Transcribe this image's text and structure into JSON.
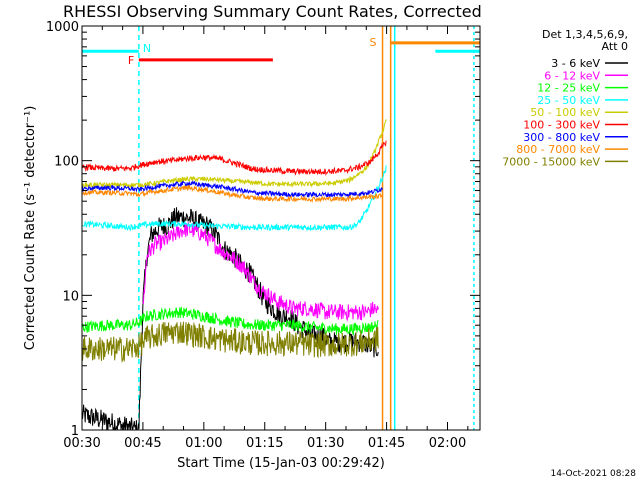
{
  "chart_data": {
    "type": "line",
    "title": "RHESSI Observing Summary Count Rates, Corrected",
    "xlabel": "Start Time (15-Jan-03 00:29:42)",
    "ylabel": "Corrected Count Rate (s⁻¹ detector⁻¹)",
    "yscale": "log",
    "ylim": [
      1,
      1000
    ],
    "xlim_minutes": [
      30,
      128
    ],
    "x_tick_minutes": [
      30,
      45,
      60,
      75,
      90,
      105,
      120
    ],
    "x_tick_labels": [
      "00:30",
      "00:45",
      "01:00",
      "01:15",
      "01:30",
      "01:45",
      "02:00"
    ],
    "y_ticks": [
      1,
      10,
      100,
      1000
    ],
    "y_tick_labels": [
      "1",
      "10",
      "100",
      "1000"
    ],
    "legend": {
      "placement": "right",
      "header": [
        "Det 1,3,4,5,6,9,",
        "Att 0"
      ]
    },
    "timestamp": "14-Oct-2021 08:28",
    "series": [
      {
        "name": "3 - 6 keV",
        "color": "#000000",
        "points": [
          [
            30,
            1.3
          ],
          [
            44,
            1.0
          ],
          [
            45,
            9
          ],
          [
            46,
            20
          ],
          [
            47,
            28
          ],
          [
            49,
            32
          ],
          [
            51,
            33
          ],
          [
            53,
            38
          ],
          [
            55,
            38
          ],
          [
            57,
            37
          ],
          [
            59,
            34
          ],
          [
            61,
            33
          ],
          [
            63,
            28
          ],
          [
            65,
            22
          ],
          [
            67,
            20
          ],
          [
            69,
            17
          ],
          [
            71,
            15
          ],
          [
            73,
            12
          ],
          [
            75,
            9
          ],
          [
            77,
            8
          ],
          [
            79,
            7
          ],
          [
            81,
            7
          ],
          [
            83,
            6
          ],
          [
            85,
            5.5
          ],
          [
            87,
            5
          ],
          [
            89,
            5
          ],
          [
            91,
            4.5
          ],
          [
            93,
            4.5
          ],
          [
            95,
            4.5
          ],
          [
            97,
            4.5
          ],
          [
            99,
            4.5
          ],
          [
            101,
            4.2
          ],
          [
            103,
            4
          ]
        ]
      },
      {
        "name": "6 - 12 keV",
        "color": "#ff00ff",
        "points": [
          [
            45,
            8
          ],
          [
            46,
            20
          ],
          [
            48,
            24
          ],
          [
            50,
            25
          ],
          [
            52,
            27
          ],
          [
            54,
            30
          ],
          [
            56,
            31
          ],
          [
            58,
            30
          ],
          [
            60,
            28
          ],
          [
            62,
            25
          ],
          [
            64,
            22
          ],
          [
            66,
            20
          ],
          [
            68,
            18
          ],
          [
            70,
            16
          ],
          [
            72,
            13
          ],
          [
            74,
            11
          ],
          [
            76,
            10
          ],
          [
            78,
            9
          ],
          [
            80,
            8.5
          ],
          [
            82,
            8
          ],
          [
            84,
            8
          ],
          [
            86,
            8
          ],
          [
            88,
            7.8
          ],
          [
            90,
            7.5
          ],
          [
            92,
            7.5
          ],
          [
            94,
            7.5
          ],
          [
            96,
            7.5
          ],
          [
            98,
            7.5
          ],
          [
            100,
            7.5
          ],
          [
            102,
            8
          ],
          [
            103,
            7.5
          ]
        ]
      },
      {
        "name": "12 - 25 keV",
        "color": "#00ff00",
        "points": [
          [
            30,
            5.8
          ],
          [
            36,
            6
          ],
          [
            42,
            6
          ],
          [
            44,
            6.3
          ],
          [
            46,
            7
          ],
          [
            50,
            7.3
          ],
          [
            54,
            7.5
          ],
          [
            58,
            7.2
          ],
          [
            62,
            6.8
          ],
          [
            66,
            6.4
          ],
          [
            70,
            6.1
          ],
          [
            74,
            6
          ],
          [
            78,
            6
          ],
          [
            82,
            6
          ],
          [
            86,
            5.8
          ],
          [
            90,
            5.7
          ],
          [
            94,
            5.6
          ],
          [
            98,
            5.7
          ],
          [
            101,
            5.8
          ],
          [
            103,
            6
          ]
        ]
      },
      {
        "name": "25 - 50 keV",
        "color": "#00ffff",
        "points": [
          [
            30,
            34
          ],
          [
            36,
            33
          ],
          [
            42,
            32
          ],
          [
            44,
            33
          ],
          [
            48,
            34
          ],
          [
            52,
            34
          ],
          [
            56,
            34
          ],
          [
            60,
            33
          ],
          [
            66,
            32.5
          ],
          [
            72,
            32
          ],
          [
            78,
            32
          ],
          [
            84,
            32
          ],
          [
            90,
            32
          ],
          [
            96,
            32
          ],
          [
            98,
            34
          ],
          [
            100,
            42
          ],
          [
            102,
            55
          ],
          [
            104,
            75
          ],
          [
            105,
            90
          ]
        ]
      },
      {
        "name": "50 - 100 keV",
        "color": "#cccc00",
        "points": [
          [
            30,
            66
          ],
          [
            38,
            66
          ],
          [
            44,
            66
          ],
          [
            48,
            68
          ],
          [
            52,
            71
          ],
          [
            56,
            73
          ],
          [
            60,
            73
          ],
          [
            64,
            72
          ],
          [
            68,
            70
          ],
          [
            72,
            69
          ],
          [
            76,
            67
          ],
          [
            80,
            67
          ],
          [
            86,
            67
          ],
          [
            92,
            68
          ],
          [
            96,
            72
          ],
          [
            100,
            88
          ],
          [
            102,
            115
          ],
          [
            104,
            165
          ],
          [
            105,
            200
          ]
        ]
      },
      {
        "name": "100 - 300 keV",
        "color": "#ff0000",
        "points": [
          [
            30,
            90
          ],
          [
            34,
            88
          ],
          [
            38,
            87
          ],
          [
            42,
            88
          ],
          [
            44,
            92
          ],
          [
            48,
            98
          ],
          [
            52,
            100
          ],
          [
            56,
            104
          ],
          [
            60,
            106
          ],
          [
            64,
            103
          ],
          [
            68,
            95
          ],
          [
            72,
            87
          ],
          [
            76,
            85
          ],
          [
            82,
            83
          ],
          [
            88,
            83
          ],
          [
            94,
            84
          ],
          [
            98,
            89
          ],
          [
            101,
            98
          ],
          [
            103,
            115
          ],
          [
            105,
            140
          ]
        ]
      },
      {
        "name": "300 - 800 keV",
        "color": "#0000ff",
        "points": [
          [
            30,
            62
          ],
          [
            36,
            63
          ],
          [
            42,
            62
          ],
          [
            44,
            61
          ],
          [
            48,
            64
          ],
          [
            52,
            66
          ],
          [
            56,
            68
          ],
          [
            60,
            66
          ],
          [
            64,
            64
          ],
          [
            68,
            61
          ],
          [
            72,
            58
          ],
          [
            76,
            57
          ],
          [
            82,
            56
          ],
          [
            88,
            56
          ],
          [
            94,
            56
          ],
          [
            98,
            57
          ],
          [
            101,
            58
          ],
          [
            104,
            62
          ]
        ]
      },
      {
        "name": "800 - 7000 keV",
        "color": "#ff8800",
        "points": [
          [
            30,
            58
          ],
          [
            36,
            58
          ],
          [
            42,
            57
          ],
          [
            44,
            56
          ],
          [
            48,
            59
          ],
          [
            52,
            61
          ],
          [
            56,
            63
          ],
          [
            60,
            61
          ],
          [
            64,
            58
          ],
          [
            68,
            55
          ],
          [
            72,
            53
          ],
          [
            76,
            52
          ],
          [
            82,
            52
          ],
          [
            88,
            52
          ],
          [
            94,
            52
          ],
          [
            98,
            53
          ],
          [
            104,
            55
          ]
        ]
      },
      {
        "name": "7000 - 15000 keV",
        "color": "#808000",
        "points": [
          [
            30,
            4
          ],
          [
            36,
            4
          ],
          [
            42,
            4
          ],
          [
            44,
            4.2
          ],
          [
            46,
            4.8
          ],
          [
            50,
            5.2
          ],
          [
            54,
            5.4
          ],
          [
            58,
            5.1
          ],
          [
            62,
            4.8
          ],
          [
            66,
            4.6
          ],
          [
            70,
            4.5
          ],
          [
            74,
            4.4
          ],
          [
            78,
            4.4
          ],
          [
            82,
            4.4
          ],
          [
            86,
            4.3
          ],
          [
            90,
            4.3
          ],
          [
            94,
            4.3
          ],
          [
            98,
            4.4
          ],
          [
            101,
            4.6
          ],
          [
            103,
            4.8
          ]
        ]
      }
    ],
    "annotations": {
      "night_label": "N",
      "flare_label": "F",
      "saa_label": "S",
      "night_segments": [
        [
          30,
          44
        ],
        [
          117,
          128
        ]
      ],
      "night_line_level": 650,
      "night_boundaries": [
        44,
        107,
        126.5
      ],
      "flare_segment": [
        44,
        77
      ],
      "flare_level": 560,
      "saa_segment": [
        106,
        128
      ],
      "saa_level": 750,
      "saa_boundaries": [
        104,
        106
      ]
    }
  }
}
